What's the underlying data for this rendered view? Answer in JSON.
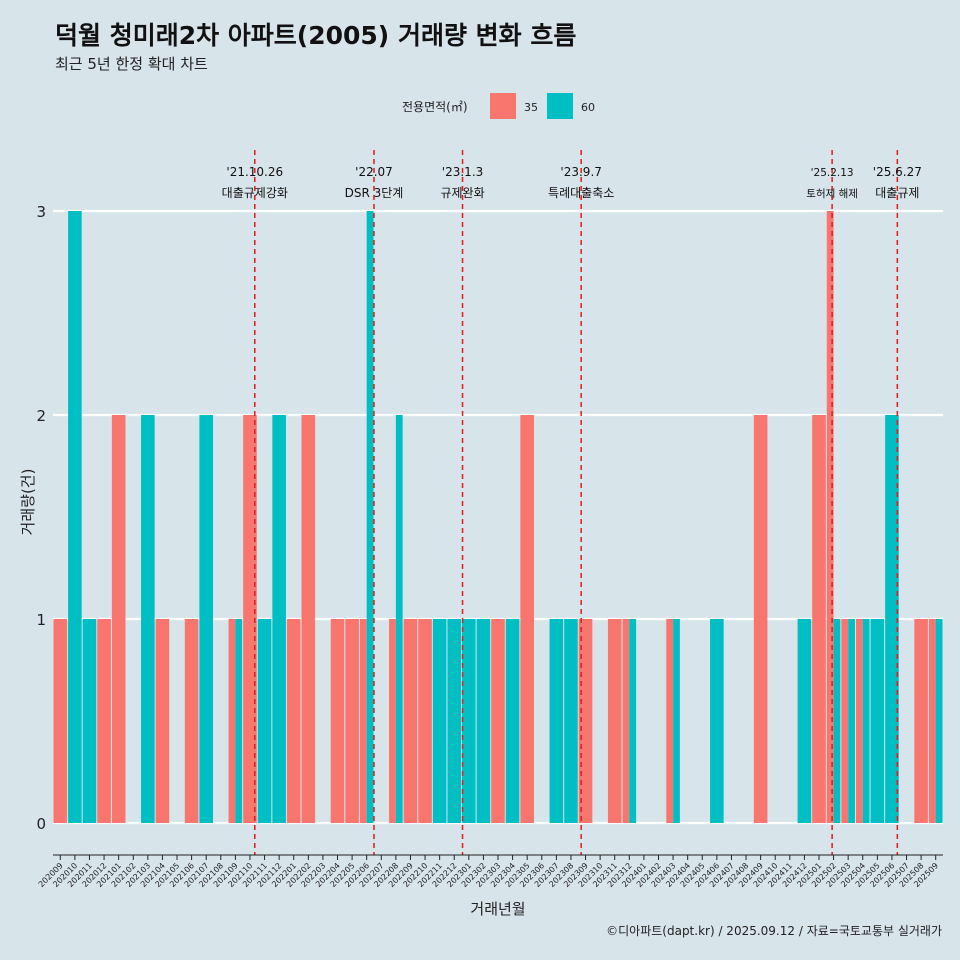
{
  "chart_data": {
    "type": "bar",
    "title": "덕월 청미래2차 아파트(2005) 거래량 변화 흐름",
    "subtitle": "최근 5년 한정 확대 차트",
    "xlabel": "거래년월",
    "ylabel": "거래량(건)",
    "ylim": [
      0,
      3
    ],
    "yticks": [
      0,
      1,
      2,
      3
    ],
    "grid": "horizontal",
    "legend": {
      "title": "전용면적(㎡)",
      "position": "top",
      "entries": [
        {
          "name": "35",
          "color": "#f8766d"
        },
        {
          "name": "60",
          "color": "#00bfc4"
        }
      ]
    },
    "categories": [
      "202009",
      "202010",
      "202011",
      "202012",
      "202101",
      "202102",
      "202103",
      "202104",
      "202105",
      "202106",
      "202107",
      "202108",
      "202109",
      "202110",
      "202111",
      "202112",
      "202201",
      "202202",
      "202203",
      "202204",
      "202205",
      "202206",
      "202207",
      "202208",
      "202209",
      "202210",
      "202211",
      "202212",
      "202301",
      "202302",
      "202303",
      "202304",
      "202305",
      "202306",
      "202307",
      "202308",
      "202309",
      "202310",
      "202311",
      "202312",
      "202401",
      "202402",
      "202403",
      "202404",
      "202405",
      "202406",
      "202407",
      "202408",
      "202409",
      "202410",
      "202411",
      "202412",
      "202501",
      "202502",
      "202503",
      "202504",
      "202505",
      "202506",
      "202507",
      "202508",
      "202509"
    ],
    "series": [
      {
        "name": "35",
        "color": "#f8766d",
        "values": [
          1,
          0,
          0,
          1,
          2,
          0,
          0,
          1,
          0,
          1,
          0,
          0,
          1,
          2,
          0,
          0,
          1,
          2,
          0,
          1,
          1,
          1,
          0,
          1,
          1,
          1,
          0,
          0,
          0,
          0,
          1,
          0,
          2,
          0,
          0,
          0,
          1,
          0,
          1,
          1,
          0,
          0,
          1,
          0,
          0,
          0,
          0,
          0,
          2,
          0,
          0,
          0,
          2,
          3,
          1,
          1,
          0,
          0,
          0,
          1,
          1
        ]
      },
      {
        "name": "60",
        "color": "#00bfc4",
        "values": [
          0,
          3,
          1,
          0,
          0,
          0,
          2,
          0,
          0,
          0,
          2,
          0,
          1,
          0,
          1,
          2,
          0,
          0,
          0,
          0,
          0,
          3,
          0,
          2,
          0,
          0,
          1,
          1,
          1,
          1,
          0,
          1,
          0,
          0,
          1,
          1,
          0,
          0,
          0,
          1,
          0,
          0,
          1,
          0,
          0,
          1,
          0,
          0,
          0,
          0,
          0,
          1,
          0,
          1,
          1,
          1,
          1,
          2,
          0,
          0,
          1
        ]
      }
    ],
    "events": [
      {
        "date": "'21.10.26",
        "label": "대출규제강화",
        "x": "202110",
        "offset": 0.83
      },
      {
        "date": "'22.07",
        "label": "DSR 3단계",
        "x": "202207",
        "offset": 0.0
      },
      {
        "date": "'23.1.3",
        "label": "규제완화",
        "x": "202301",
        "offset": 0.07
      },
      {
        "date": "'23.9.7",
        "label": "특례대출축소",
        "x": "202309",
        "offset": 0.2
      },
      {
        "date": "'25.2.13",
        "label": "토허제 해제",
        "x": "202502",
        "offset": 0.4
      },
      {
        "date": "'25.6.27",
        "label": "대출규제",
        "x": "202506",
        "offset": 0.87
      }
    ],
    "event_color": "#e41a1c"
  },
  "caption": "©디아파트(dapt.kr) / 2025.09.12 / 자료=국토교통부 실거래가"
}
